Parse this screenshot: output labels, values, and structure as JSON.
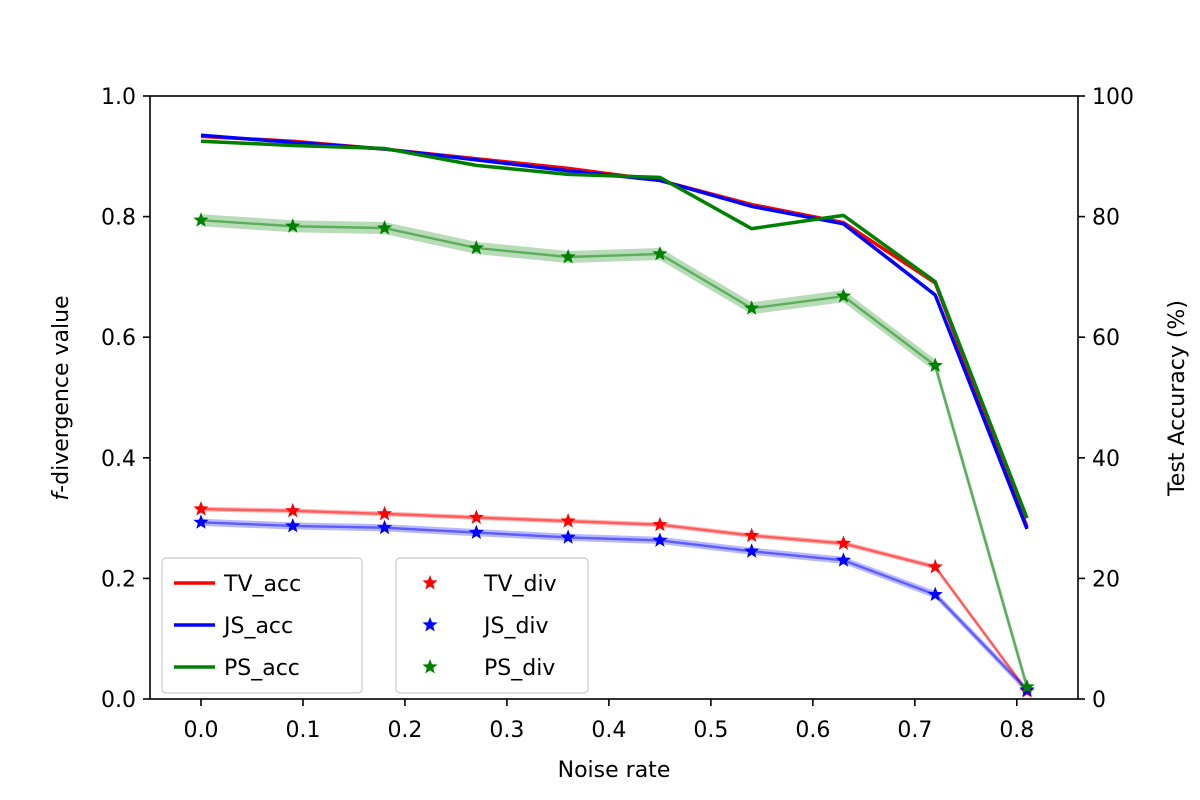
{
  "chart_data": {
    "type": "line",
    "x": [
      0.0,
      0.09,
      0.18,
      0.27,
      0.36,
      0.45,
      0.54,
      0.63,
      0.72,
      0.81
    ],
    "xlabel": "Noise rate",
    "ylabel_left_prefix": "f",
    "ylabel_left_suffix": "-divergence value",
    "ylabel_right": "Test Accuracy (%)",
    "xlim": [
      -0.05,
      0.86
    ],
    "ylim_left": [
      0.0,
      1.0
    ],
    "ylim_right": [
      0,
      100
    ],
    "xticks": [
      "0.0",
      "0.1",
      "0.2",
      "0.3",
      "0.4",
      "0.5",
      "0.6",
      "0.7",
      "0.8"
    ],
    "xtick_values": [
      0.0,
      0.1,
      0.2,
      0.3,
      0.4,
      0.5,
      0.6,
      0.7,
      0.8
    ],
    "yticks_left": [
      "0.0",
      "0.2",
      "0.4",
      "0.6",
      "0.8",
      "1.0"
    ],
    "ytick_values_left": [
      0.0,
      0.2,
      0.4,
      0.6,
      0.8,
      1.0
    ],
    "yticks_right": [
      "0",
      "20",
      "40",
      "60",
      "80",
      "100"
    ],
    "ytick_values_right": [
      0,
      20,
      40,
      60,
      80,
      100
    ],
    "accuracy_series": [
      {
        "name": "TV_acc",
        "color": "#ff0000",
        "values": [
          93.3,
          92.5,
          91.2,
          89.6,
          88.0,
          86.0,
          82.0,
          79.0,
          69.0,
          28.5
        ]
      },
      {
        "name": "JS_acc",
        "color": "#0000ff",
        "values": [
          93.5,
          92.3,
          91.2,
          89.4,
          87.6,
          86.0,
          81.7,
          78.8,
          67.0,
          28.2
        ]
      },
      {
        "name": "PS_acc",
        "color": "#008000",
        "values": [
          92.5,
          91.8,
          91.3,
          88.5,
          87.0,
          86.5,
          78.0,
          80.2,
          69.2,
          30.0
        ]
      }
    ],
    "divergence_series": [
      {
        "name": "TV_div",
        "color": "#ff0000",
        "values": [
          0.315,
          0.312,
          0.307,
          0.301,
          0.295,
          0.289,
          0.271,
          0.258,
          0.219,
          0.013
        ],
        "band": 0.004
      },
      {
        "name": "JS_div",
        "color": "#0000ff",
        "values": [
          0.293,
          0.287,
          0.284,
          0.276,
          0.268,
          0.263,
          0.245,
          0.23,
          0.173,
          0.015
        ],
        "band": 0.006
      },
      {
        "name": "PS_div",
        "color": "#008000",
        "values": [
          0.794,
          0.784,
          0.781,
          0.748,
          0.733,
          0.738,
          0.648,
          0.668,
          0.553,
          0.02
        ],
        "band": 0.01
      }
    ],
    "legend_placement": "lower-left",
    "legend_left": [
      "TV_acc",
      "JS_acc",
      "PS_acc"
    ],
    "legend_right": [
      "TV_div",
      "JS_div",
      "PS_div"
    ]
  }
}
